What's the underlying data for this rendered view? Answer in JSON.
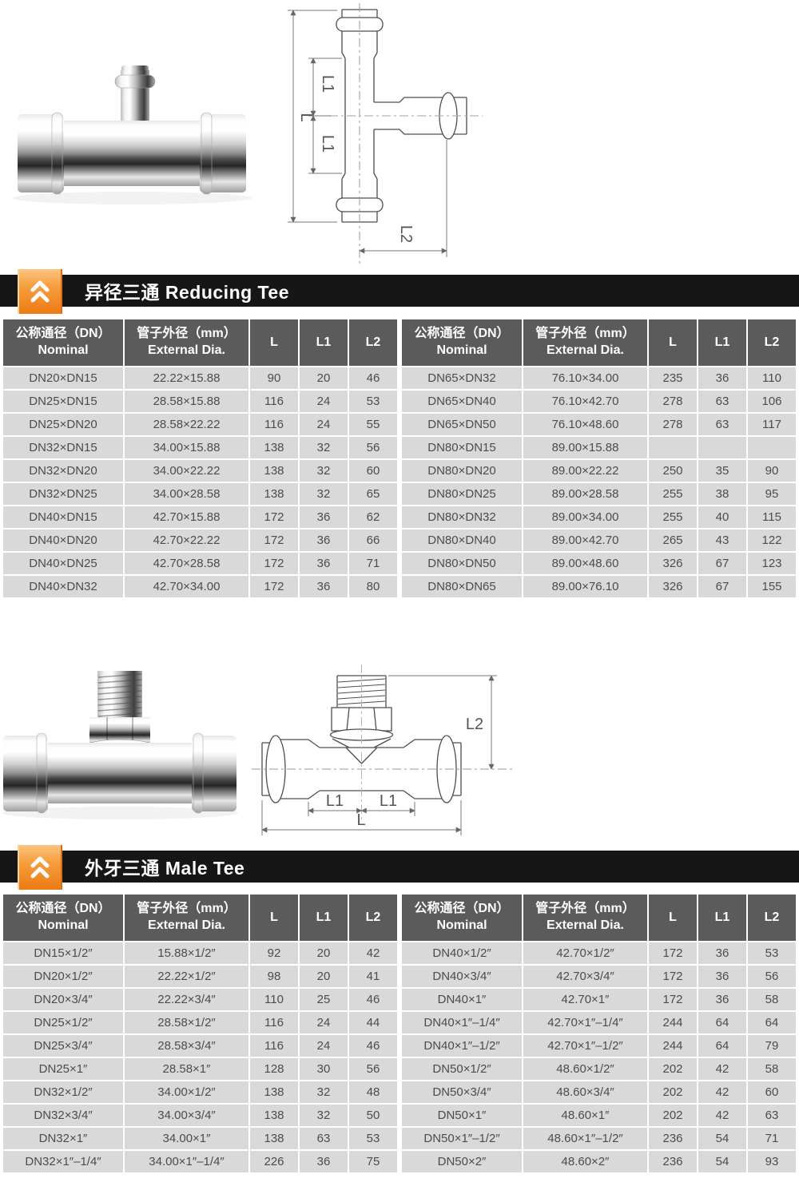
{
  "colors": {
    "accent_orange": "#ec7b12",
    "banner_black": "#161616",
    "table_header_gray": "#5b5b5b",
    "table_row_gray": "#d9d9d9"
  },
  "table_headers": {
    "nominal_zh": "公称通径（DN）",
    "nominal_en": "Nominal",
    "dia_zh": "管子外径（mm）",
    "dia_en": "External Dia.",
    "l": "L",
    "l1": "L1",
    "l2": "L2"
  },
  "drawing_labels": {
    "l": "L",
    "l1": "L1",
    "l2": "L2"
  },
  "reducing_tee": {
    "banner": "异径三通 Reducing Tee",
    "left_rows": [
      [
        "DN20×DN15",
        "22.22×15.88",
        "90",
        "20",
        "46"
      ],
      [
        "DN25×DN15",
        "28.58×15.88",
        "116",
        "24",
        "53"
      ],
      [
        "DN25×DN20",
        "28.58×22.22",
        "116",
        "24",
        "55"
      ],
      [
        "DN32×DN15",
        "34.00×15.88",
        "138",
        "32",
        "56"
      ],
      [
        "DN32×DN20",
        "34.00×22.22",
        "138",
        "32",
        "60"
      ],
      [
        "DN32×DN25",
        "34.00×28.58",
        "138",
        "32",
        "65"
      ],
      [
        "DN40×DN15",
        "42.70×15.88",
        "172",
        "36",
        "62"
      ],
      [
        "DN40×DN20",
        "42.70×22.22",
        "172",
        "36",
        "66"
      ],
      [
        "DN40×DN25",
        "42.70×28.58",
        "172",
        "36",
        "71"
      ],
      [
        "DN40×DN32",
        "42.70×34.00",
        "172",
        "36",
        "80"
      ]
    ],
    "right_rows": [
      [
        "DN65×DN32",
        "76.10×34.00",
        "235",
        "36",
        "110"
      ],
      [
        "DN65×DN40",
        "76.10×42.70",
        "278",
        "63",
        "106"
      ],
      [
        "DN65×DN50",
        "76.10×48.60",
        "278",
        "63",
        "117"
      ],
      [
        "DN80×DN15",
        "89.00×15.88",
        "",
        "",
        ""
      ],
      [
        "DN80×DN20",
        "89.00×22.22",
        "250",
        "35",
        "90"
      ],
      [
        "DN80×DN25",
        "89.00×28.58",
        "255",
        "38",
        "95"
      ],
      [
        "DN80×DN32",
        "89.00×34.00",
        "255",
        "40",
        "115"
      ],
      [
        "DN80×DN40",
        "89.00×42.70",
        "265",
        "43",
        "122"
      ],
      [
        "DN80×DN50",
        "89.00×48.60",
        "326",
        "67",
        "123"
      ],
      [
        "DN80×DN65",
        "89.00×76.10",
        "326",
        "67",
        "155"
      ]
    ]
  },
  "male_tee": {
    "banner": "外牙三通 Male Tee",
    "left_rows": [
      [
        "DN15×1/2″",
        "15.88×1/2″",
        "92",
        "20",
        "42"
      ],
      [
        "DN20×1/2″",
        "22.22×1/2″",
        "98",
        "20",
        "41"
      ],
      [
        "DN20×3/4″",
        "22.22×3/4″",
        "110",
        "25",
        "46"
      ],
      [
        "DN25×1/2″",
        "28.58×1/2″",
        "116",
        "24",
        "44"
      ],
      [
        "DN25×3/4″",
        "28.58×3/4″",
        "116",
        "24",
        "46"
      ],
      [
        "DN25×1″",
        "28.58×1″",
        "128",
        "30",
        "56"
      ],
      [
        "DN32×1/2″",
        "34.00×1/2″",
        "138",
        "32",
        "48"
      ],
      [
        "DN32×3/4″",
        "34.00×3/4″",
        "138",
        "32",
        "50"
      ],
      [
        "DN32×1″",
        "34.00×1″",
        "138",
        "63",
        "53"
      ],
      [
        "DN32×1″–1/4″",
        "34.00×1″–1/4″",
        "226",
        "36",
        "75"
      ]
    ],
    "right_rows": [
      [
        "DN40×1/2″",
        "42.70×1/2″",
        "172",
        "36",
        "53"
      ],
      [
        "DN40×3/4″",
        "42.70×3/4″",
        "172",
        "36",
        "56"
      ],
      [
        "DN40×1″",
        "42.70×1″",
        "172",
        "36",
        "58"
      ],
      [
        "DN40×1″–1/4″",
        "42.70×1″–1/4″",
        "244",
        "64",
        "64"
      ],
      [
        "DN40×1″–1/2″",
        "42.70×1″–1/2″",
        "244",
        "64",
        "79"
      ],
      [
        "DN50×1/2″",
        "48.60×1/2″",
        "202",
        "42",
        "58"
      ],
      [
        "DN50×3/4″",
        "48.60×3/4″",
        "202",
        "42",
        "60"
      ],
      [
        "DN50×1″",
        "48.60×1″",
        "202",
        "42",
        "63"
      ],
      [
        "DN50×1″–1/2″",
        "48.60×1″–1/2″",
        "236",
        "54",
        "71"
      ],
      [
        "DN50×2″",
        "48.60×2″",
        "236",
        "54",
        "93"
      ]
    ]
  }
}
